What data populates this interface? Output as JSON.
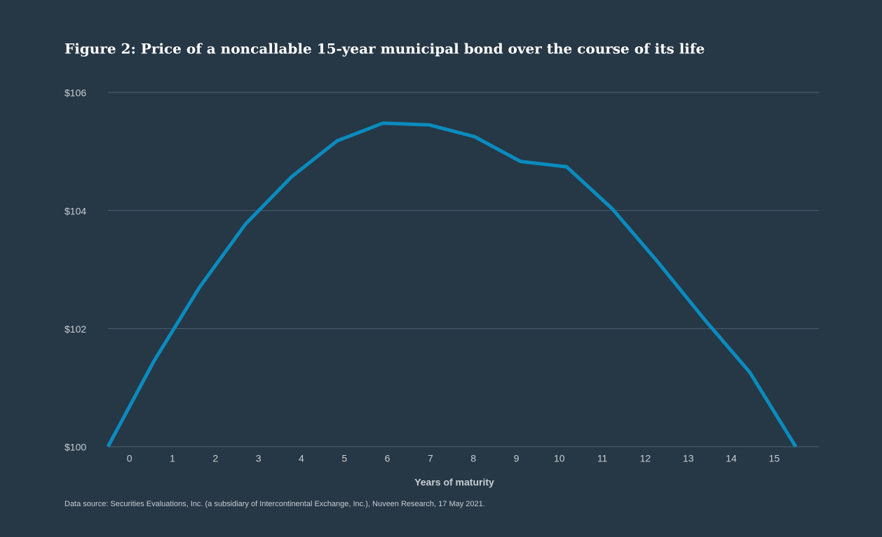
{
  "chart_data": {
    "type": "line",
    "title": "Figure 2: Price of a noncallable 15-year municipal bond over the course of its life",
    "x_label": "Years of maturity",
    "source": "Data source: Securities Evaluations, Inc. (a subsidiary of Intercontinental Exchange, Inc.), Nuveen Research, 17 May 2021.",
    "x": [
      -0.5,
      0.57,
      1.63,
      2.7,
      3.77,
      4.83,
      5.9,
      6.97,
      8.03,
      9.1,
      10.17,
      11.23,
      12.3,
      13.37,
      14.43,
      15.5
    ],
    "series": [
      {
        "color": "#0a8bbd",
        "values": [
          100,
          101.45,
          102.7,
          103.77,
          104.57,
          105.18,
          105.48,
          105.45,
          105.25,
          104.83,
          104.74,
          104.03,
          103.12,
          102.16,
          101.26,
          100
        ]
      }
    ],
    "xlim": [
      -0.5,
      15.5
    ],
    "xticks": [
      0,
      1,
      2,
      3,
      4,
      5,
      6,
      7,
      8,
      9,
      10,
      11,
      12,
      13,
      14,
      15
    ],
    "ylim": [
      100,
      106
    ],
    "yticks": [
      {
        "value": 100,
        "label": "$100"
      },
      {
        "value": 102,
        "label": "$102"
      },
      {
        "value": 104,
        "label": "$104"
      },
      {
        "value": 106,
        "label": "$106"
      }
    ],
    "grid": true
  }
}
